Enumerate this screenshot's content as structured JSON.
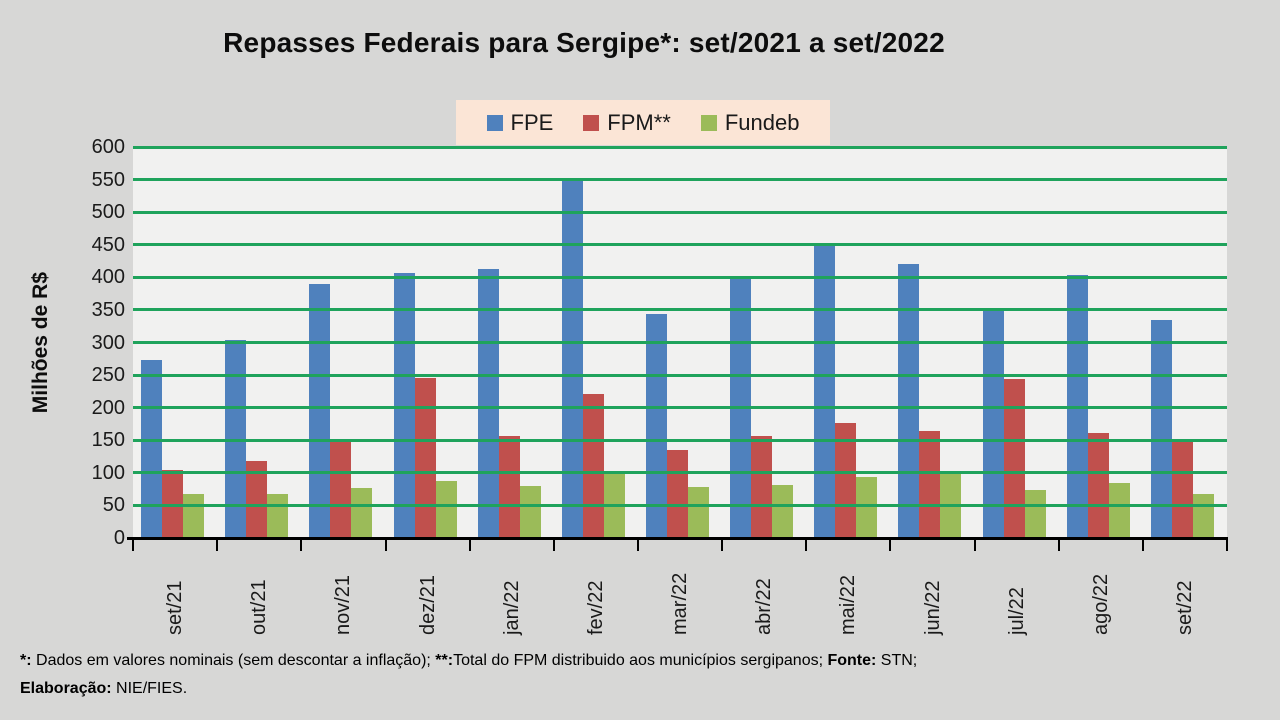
{
  "chart_data": {
    "type": "bar",
    "title": "Repasses Federais para Sergipe*: set/2021 a set/2022",
    "xlabel": "",
    "ylabel": "Milhões de R$",
    "ylim": [
      0,
      600
    ],
    "ytick_step": 50,
    "grid": true,
    "gridline_color": "#1fa35c",
    "legend_position": "top",
    "plot_bg": "#f1f1f0",
    "page_bg": "#d7d7d6",
    "legend_bg": "#fbe5d6",
    "categories": [
      "set/21",
      "out/21",
      "nov/21",
      "dez/21",
      "jan/22",
      "fev/22",
      "mar/22",
      "abr/22",
      "mai/22",
      "jun/22",
      "jul/22",
      "ago/22",
      "set/22"
    ],
    "series": [
      {
        "name": "FPE",
        "color": "#4f81bd",
        "values": [
          273,
          304,
          390,
          406,
          413,
          553,
          344,
          402,
          453,
          420,
          353,
          404,
          335
        ]
      },
      {
        "name": "FPM**",
        "color": "#c0504d",
        "values": [
          105,
          118,
          152,
          245,
          157,
          221,
          135,
          157,
          177,
          165,
          244,
          161,
          152
        ]
      },
      {
        "name": "Fundeb",
        "color": "#9bbb59",
        "values": [
          67,
          67,
          77,
          87,
          80,
          101,
          79,
          81,
          93,
          99,
          74,
          84,
          67
        ]
      }
    ]
  },
  "footnote": {
    "line1": [
      {
        "text": "*:",
        "bold": true
      },
      {
        "text": " Dados em valores nominais (sem descontar a inflação); ",
        "bold": false
      },
      {
        "text": "**:",
        "bold": true
      },
      {
        "text": "Total do FPM distribuido aos municípios sergipanos; ",
        "bold": false
      },
      {
        "text": "Fonte:",
        "bold": true
      },
      {
        "text": " STN;",
        "bold": false
      }
    ],
    "line2": [
      {
        "text": "Elaboração:",
        "bold": true
      },
      {
        "text": " NIE/FIES.",
        "bold": false
      }
    ]
  }
}
